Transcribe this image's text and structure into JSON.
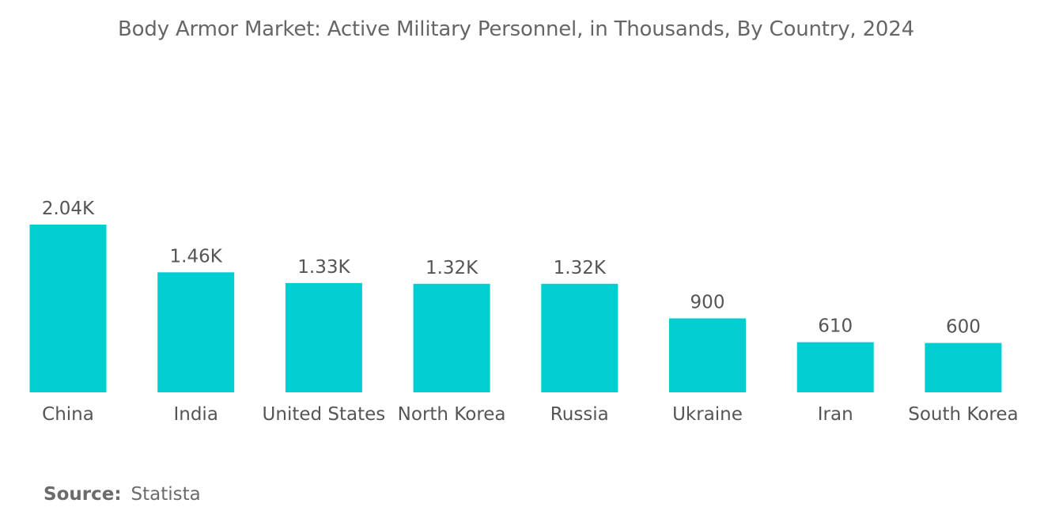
{
  "chart_data": {
    "type": "bar",
    "title": "Body Armor Market: Active Military Personnel, in Thousands, By Country, 2024",
    "categories": [
      "China",
      "India",
      "United States",
      "North Korea",
      "Russia",
      "Ukraine",
      "Iran",
      "South Korea"
    ],
    "values": [
      2040,
      1460,
      1330,
      1320,
      1320,
      900,
      610,
      600
    ],
    "data_labels": [
      "2.04K",
      "1.46K",
      "1.33K",
      "1.32K",
      "1.32K",
      "900",
      "610",
      "600"
    ],
    "xlabel": "",
    "ylabel": "",
    "ylim": [
      0,
      2040
    ],
    "grid": false,
    "legend": "none",
    "bar_color": "#00CED1"
  },
  "source": {
    "label": "Source:",
    "value": "Statista"
  }
}
